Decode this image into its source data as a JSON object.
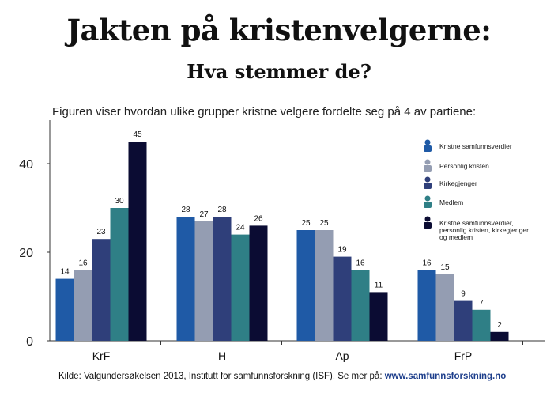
{
  "title": "Jakten på kristenvelgerne:",
  "subtitle": "Hva stemmer de?",
  "caption": "Figuren viser hvordan ulike grupper kristne velgere fordelte seg på 4 av partiene:",
  "source": {
    "text": "Kilde: Valgundersøkelsen 2013, Institutt for samfunnsforskning (ISF). Se mer på: ",
    "url": "www.samfunnsforskning.no"
  },
  "chart_data": {
    "type": "bar",
    "categories": [
      "KrF",
      "H",
      "Ap",
      "FrP"
    ],
    "ylim": [
      0,
      50
    ],
    "yticks": [
      0,
      20,
      40
    ],
    "grid": false,
    "legend_position": "top-right",
    "series": [
      {
        "name": "Kristne samfunnsverdier",
        "color": "#1f5aa6",
        "values": [
          14,
          28,
          25,
          16
        ]
      },
      {
        "name": "Personlig kristen",
        "color": "#949db2",
        "values": [
          16,
          27,
          25,
          15
        ]
      },
      {
        "name": "Kirkegjenger",
        "color": "#2f3f7a",
        "values": [
          23,
          28,
          19,
          9
        ]
      },
      {
        "name": "Medlem",
        "color": "#2f7f86",
        "values": [
          30,
          24,
          16,
          7
        ]
      },
      {
        "name": "Kristne samfunnsverdier, personlig kristen, kirkegjenger og medlem",
        "legend_lines": [
          "Kristne samfunnsverdier,",
          "personlig kristen, kirkegjenger",
          "og medlem"
        ],
        "color": "#0b0c33",
        "values": [
          45,
          26,
          11,
          2
        ]
      }
    ]
  }
}
